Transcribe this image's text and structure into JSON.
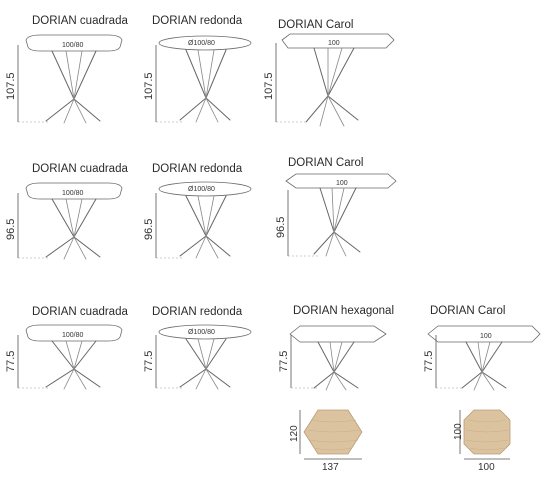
{
  "rows": [
    {
      "items": [
        {
          "title": "DORIAN cuadrada",
          "top": "100/80",
          "height": "107.5"
        },
        {
          "title": "DORIAN redonda",
          "top": "Ø100/80",
          "height": "107.5"
        },
        {
          "title": "DORIAN Carol",
          "top": "100",
          "height": "107.5"
        }
      ]
    },
    {
      "items": [
        {
          "title": "DORIAN cuadrada",
          "top": "100/80",
          "height": "96.5"
        },
        {
          "title": "DORIAN redonda",
          "top": "Ø100/80",
          "height": "96.5"
        },
        {
          "title": "DORIAN Carol",
          "top": "100",
          "height": "96.5"
        }
      ]
    },
    {
      "items": [
        {
          "title": "DORIAN cuadrada",
          "top": "100/80",
          "height": "77.5"
        },
        {
          "title": "DORIAN redonda",
          "top": "Ø100/80",
          "height": "77.5"
        },
        {
          "title": "DORIAN hexagonal",
          "top": "",
          "height": "77.5"
        },
        {
          "title": "DORIAN Carol",
          "top": "100",
          "height": "77.5"
        }
      ]
    }
  ],
  "swatches": {
    "hexagonal": {
      "height": "120",
      "width": "137"
    },
    "carol": {
      "height": "100",
      "width": "100"
    }
  },
  "colors": {
    "wood": "#dcc3a0",
    "line": "#666666"
  }
}
